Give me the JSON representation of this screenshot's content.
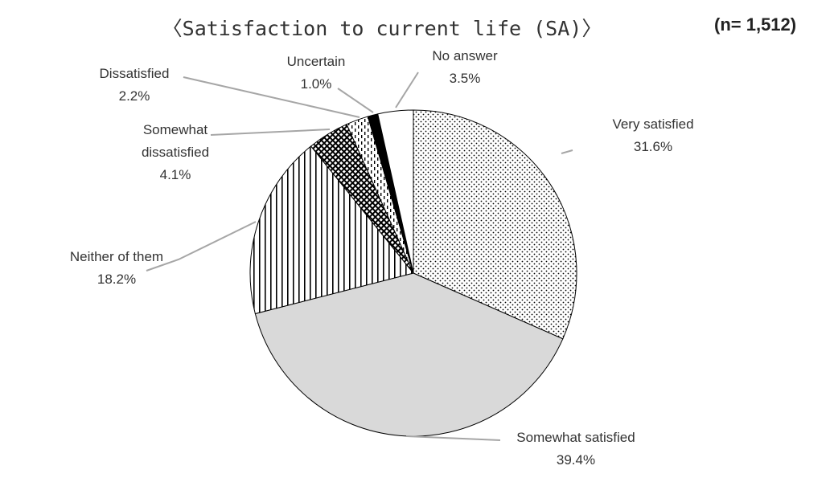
{
  "chart_data": {
    "type": "pie",
    "title": "〈Satisfaction to current life (SA)〉",
    "note": "(n= 1,512)",
    "categories": [
      "Very satisfied",
      "Somewhat satisfied",
      "Neither of them",
      "Somewhat dissatisfied",
      "Dissatisfied",
      "Uncertain",
      "No answer"
    ],
    "values": [
      31.6,
      39.4,
      18.2,
      4.1,
      2.2,
      1.0,
      3.5
    ],
    "value_labels": [
      "31.6%",
      "39.4%",
      "18.2%",
      "4.1%",
      "2.2%",
      "1.0%",
      "3.5%"
    ],
    "colors": [
      "#ffffff",
      "#d9d9d9",
      "#ffffff",
      "#ffffff",
      "#ffffff",
      "#000000",
      "#ffffff"
    ],
    "patterns": [
      "dots",
      "solid",
      "vertical-lines",
      "crosshatch",
      "dashes",
      "solid",
      "solid"
    ]
  }
}
